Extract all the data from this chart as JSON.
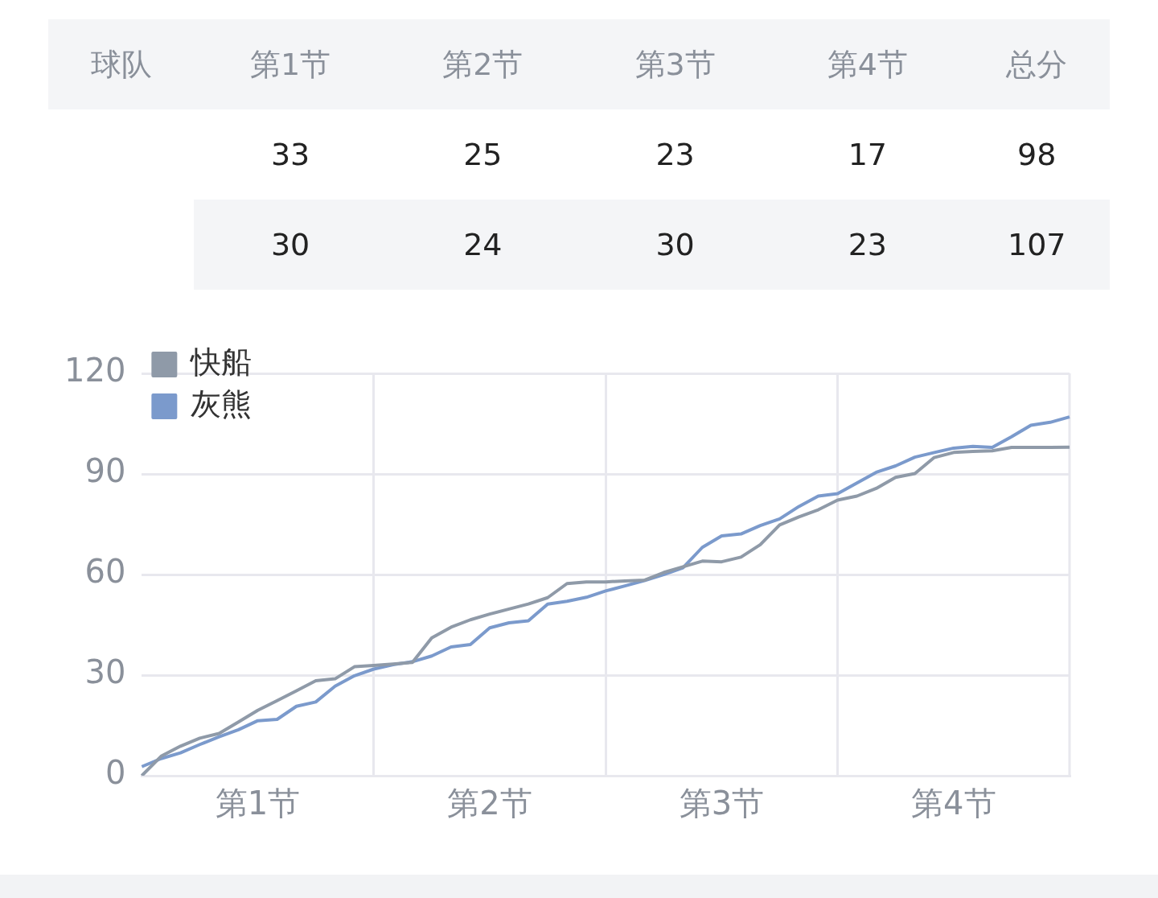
{
  "chart_data": [
    {
      "type": "heatmap",
      "ylabel": "球队",
      "categories": [
        "第1节",
        "第2节",
        "第3节",
        "第4节",
        "总分"
      ],
      "y_categories": [
        null,
        null
      ],
      "data_labels": true,
      "cells": [
        [
          33,
          25,
          23,
          17,
          98
        ],
        [
          30,
          24,
          30,
          23,
          107
        ]
      ]
    },
    {
      "type": "line",
      "categories": [
        null,
        null,
        null,
        null,
        null,
        null,
        "第1节",
        null,
        null,
        null,
        null,
        null,
        null,
        null,
        null,
        null,
        null,
        null,
        "第2节",
        null,
        null,
        null,
        null,
        null,
        null,
        null,
        null,
        null,
        null,
        null,
        "第3节",
        null,
        null,
        null,
        null,
        null,
        null,
        null,
        null,
        null,
        null,
        null,
        "第4节",
        null,
        null,
        null,
        null,
        null,
        null
      ],
      "ylim": [
        0,
        120
      ],
      "yticks": [
        0,
        30,
        60,
        90,
        120
      ],
      "grid": true,
      "legend": "top left",
      "marker": "none",
      "line_style": "solid",
      "series": [
        {
          "name": "快船",
          "color": "#8f9aa8",
          "values": [
            0,
            5.8,
            8.8,
            11.2,
            12.6,
            16,
            19.5,
            22.4,
            25.3,
            28.3,
            28.9,
            32.5,
            32.9,
            33.3,
            33.8,
            41.1,
            44.3,
            46.5,
            48.2,
            49.7,
            51.2,
            53.1,
            57.3,
            57.8,
            57.8,
            58.1,
            58.3,
            60.6,
            62.3,
            64,
            63.8,
            65.2,
            68.9,
            74.8,
            77.2,
            79.3,
            82.2,
            83.4,
            85.7,
            89,
            90.1,
            94.9,
            96.4,
            96.7,
            96.9,
            97.9,
            97.9,
            97.9,
            98
          ]
        },
        {
          "name": "灰熊",
          "color": "#7b9acc",
          "values": [
            2.7,
            5.1,
            6.8,
            9.3,
            11.6,
            13.7,
            16.4,
            16.8,
            20.7,
            22,
            26.7,
            29.8,
            31.8,
            33.1,
            34,
            35.7,
            38.4,
            39.1,
            44.1,
            45.6,
            46.2,
            51.2,
            52,
            53.2,
            55.1,
            56.6,
            58.2,
            60,
            62,
            68.1,
            71.5,
            72.1,
            74.6,
            76.6,
            80.3,
            83.4,
            84.1,
            87.3,
            90.5,
            92.4,
            95,
            96.4,
            97.7,
            98.2,
            97.9,
            101.1,
            104.5,
            105.4,
            107
          ]
        }
      ]
    }
  ]
}
